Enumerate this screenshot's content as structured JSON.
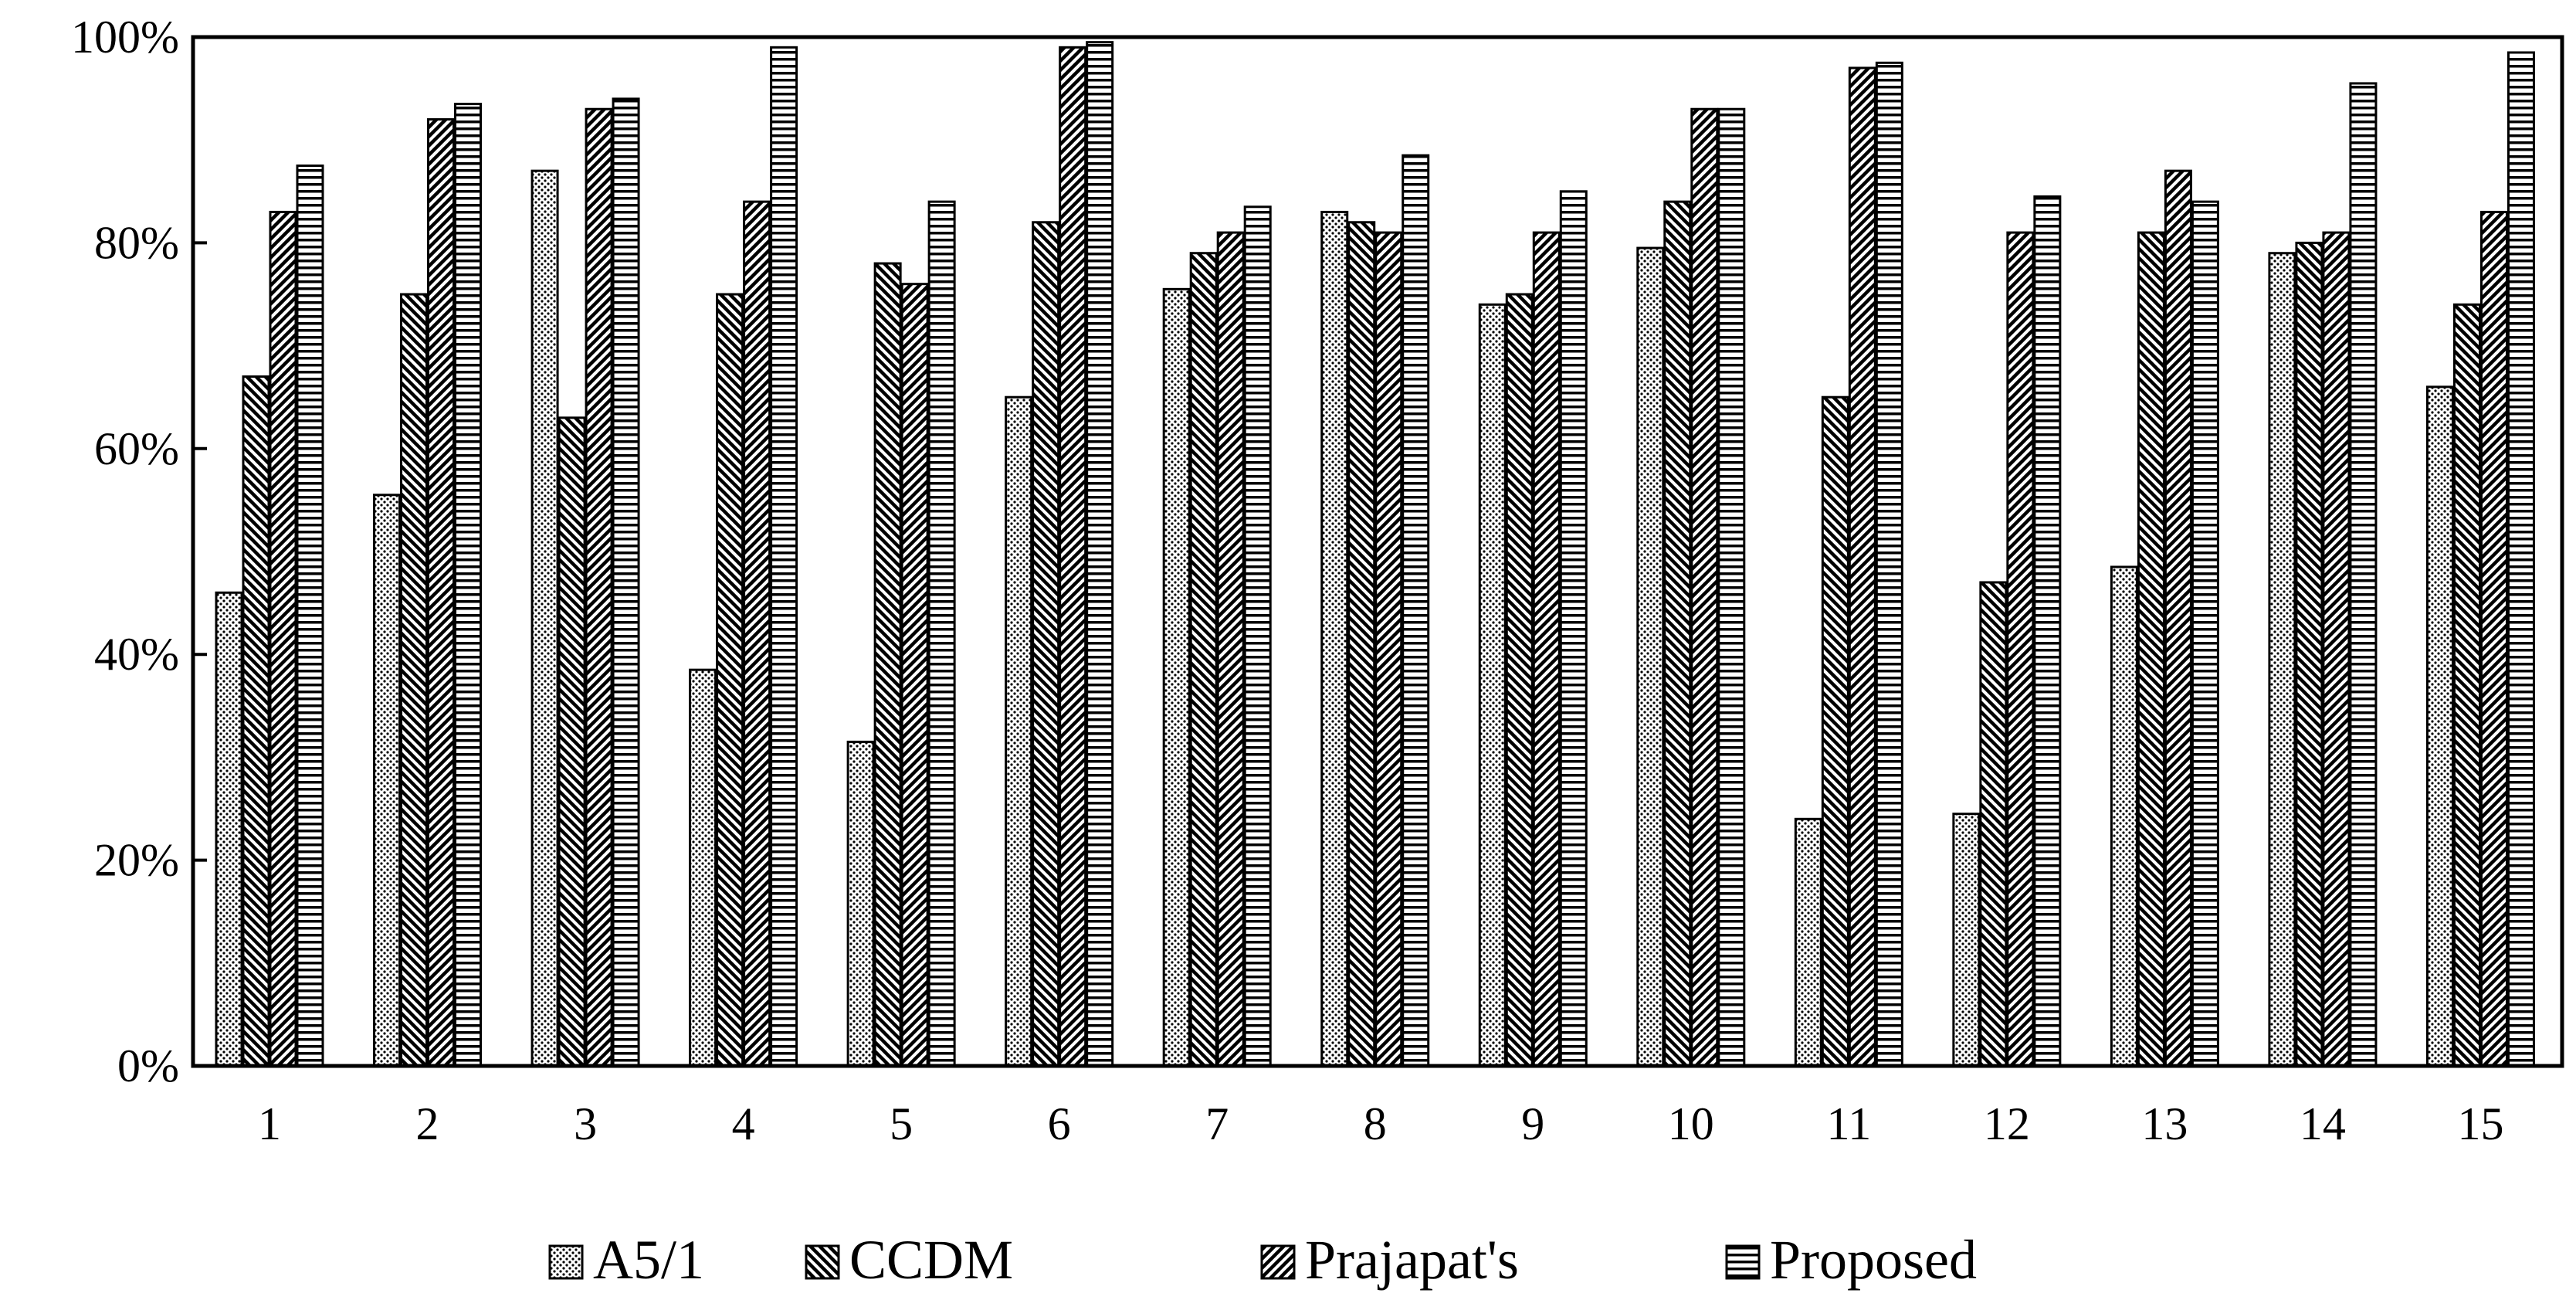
{
  "chart_data": {
    "type": "bar",
    "title": "",
    "xlabel": "",
    "ylabel": "",
    "ylim": [
      0,
      100
    ],
    "y_ticks": [
      "0%",
      "20%",
      "40%",
      "60%",
      "80%",
      "100%"
    ],
    "grid": false,
    "legend_position": "bottom",
    "categories": [
      "1",
      "2",
      "3",
      "4",
      "5",
      "6",
      "7",
      "8",
      "9",
      "10",
      "11",
      "12",
      "13",
      "14",
      "15"
    ],
    "series": [
      {
        "name": "A5/1",
        "pattern": "dots",
        "values": [
          46,
          55.5,
          87,
          38.5,
          31.5,
          65,
          75.5,
          83,
          74,
          79.5,
          24,
          24.5,
          48.5,
          79,
          66
        ]
      },
      {
        "name": "CCDM",
        "pattern": "backslash",
        "values": [
          67,
          75,
          63,
          75,
          78,
          82,
          79,
          82,
          75,
          84,
          65,
          47,
          81,
          80,
          74
        ]
      },
      {
        "name": "Prajapat's",
        "pattern": "slash",
        "values": [
          83,
          92,
          93,
          84,
          76,
          99,
          81,
          81,
          81,
          93,
          97,
          81,
          87,
          81,
          83
        ]
      },
      {
        "name": "Proposed",
        "pattern": "hlines",
        "values": [
          87.5,
          93.5,
          94,
          99,
          84,
          99.5,
          83.5,
          88.5,
          85,
          93,
          97.5,
          84.5,
          84,
          95.5,
          98.5
        ]
      }
    ],
    "colors": {
      "stroke": "#000000",
      "fill": "#ffffff"
    }
  }
}
